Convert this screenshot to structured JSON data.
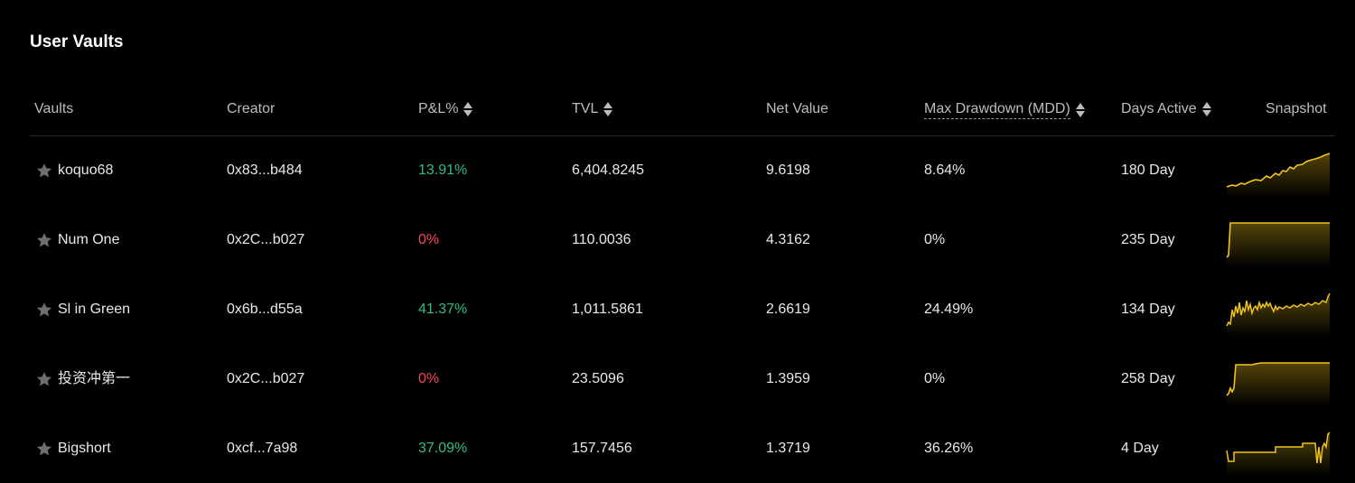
{
  "title": "User Vaults",
  "columns": {
    "vaults": "Vaults",
    "creator": "Creator",
    "pnl": "P&L%",
    "tvl": "TVL",
    "net_value": "Net Value",
    "mdd": "Max Drawdown (MDD)",
    "days_active": "Days Active",
    "snapshot": "Snapshot"
  },
  "colors": {
    "positive": "#2ebd85",
    "negative": "#f6465d",
    "spark_line": "#f0c419",
    "star": "#6e6e6e"
  },
  "rows": [
    {
      "name": "koquo68",
      "creator": "0x83...b484",
      "pnl": "13.91%",
      "pnl_sign": "pos",
      "tvl": "6,404.8245",
      "net_value": "9.6198",
      "mdd": "8.64%",
      "days": "180 Day",
      "icon": "star-icon"
    },
    {
      "name": "Num One",
      "creator": "0x2C...b027",
      "pnl": "0%",
      "pnl_sign": "neg",
      "tvl": "110.0036",
      "net_value": "4.3162",
      "mdd": "0%",
      "days": "235 Day",
      "icon": "star-icon"
    },
    {
      "name": "Sl in Green",
      "creator": "0x6b...d55a",
      "pnl": "41.37%",
      "pnl_sign": "pos",
      "tvl": "1,011.5861",
      "net_value": "2.6619",
      "mdd": "24.49%",
      "days": "134 Day",
      "icon": "star-icon"
    },
    {
      "name": "投资冲第一",
      "creator": "0x2C...b027",
      "pnl": "0%",
      "pnl_sign": "neg",
      "tvl": "23.5096",
      "net_value": "1.3959",
      "mdd": "0%",
      "days": "258 Day",
      "icon": "star-icon"
    },
    {
      "name": "Bigshort",
      "creator": "0xcf...7a98",
      "pnl": "37.09%",
      "pnl_sign": "pos",
      "tvl": "157.7456",
      "net_value": "1.3719",
      "mdd": "36.26%",
      "days": "4 Day",
      "icon": "star-icon"
    }
  ]
}
